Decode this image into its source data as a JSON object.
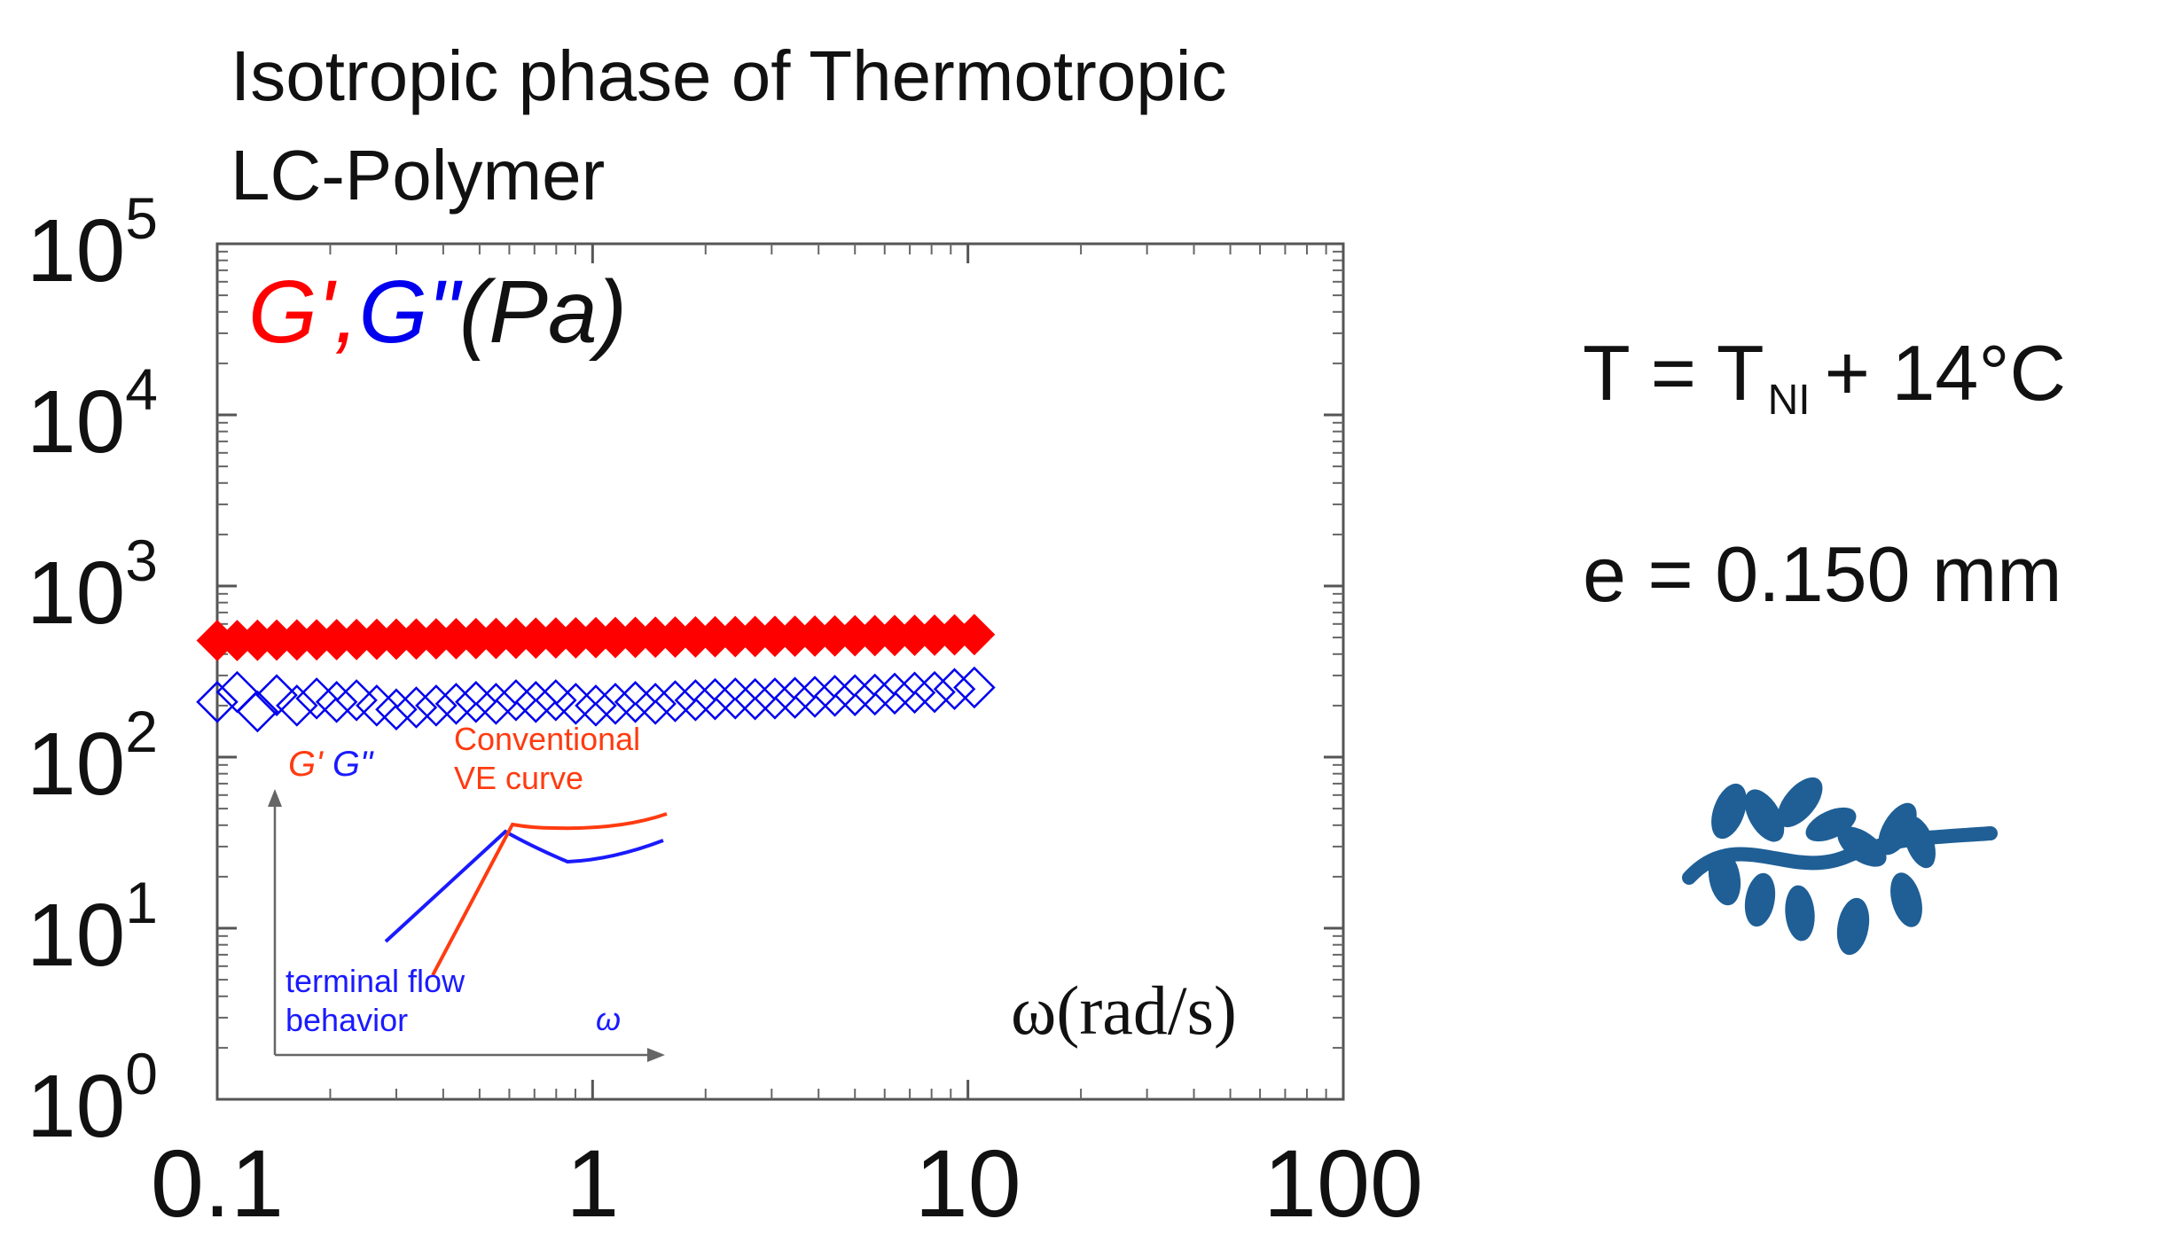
{
  "title": {
    "line1": "Isotropic phase of Thermotropic",
    "line2": "LC-Polymer"
  },
  "conditions": {
    "temperature": {
      "prefix": "T = T",
      "subscript": "NI",
      "suffix": "+ 14°C"
    },
    "gap": "e = 0.150 mm"
  },
  "colors": {
    "g_prime": "#ff0000",
    "g_double_prime": "#0000ee",
    "molecule": "#1f5f96",
    "inset_red": "#ff3b10",
    "inset_blue": "#1a1aff"
  },
  "chart_data": {
    "type": "scatter",
    "title": "Isotropic phase of Thermotropic LC-Polymer",
    "xscale": "log",
    "yscale": "log",
    "xlim": [
      0.1,
      100
    ],
    "ylim": [
      1,
      100000
    ],
    "x_tick_labels": [
      "0.1",
      "1",
      "10",
      "100"
    ],
    "y_tick_labels": [
      {
        "base": "10",
        "exp": "0"
      },
      {
        "base": "10",
        "exp": "1"
      },
      {
        "base": "10",
        "exp": "2"
      },
      {
        "base": "10",
        "exp": "3"
      },
      {
        "base": "10",
        "exp": "4"
      },
      {
        "base": "10",
        "exp": "5"
      }
    ],
    "ylabel_parts": {
      "g_prime": "G'",
      "comma": ",",
      "g_double_prime": "G\"",
      "unit": "(Pa)"
    },
    "xlabel": "ω(rad/s)",
    "series": [
      {
        "name": "G'",
        "marker": "filled-diamond",
        "omega": [
          0.1,
          0.113,
          0.128,
          0.144,
          0.163,
          0.184,
          0.208,
          0.235,
          0.266,
          0.3,
          0.339,
          0.383,
          0.433,
          0.489,
          0.553,
          0.625,
          0.706,
          0.798,
          0.902,
          1.02,
          1.15,
          1.3,
          1.47,
          1.66,
          1.88,
          2.12,
          2.4,
          2.71,
          3.06,
          3.46,
          3.91,
          4.42,
          5.0,
          5.65,
          6.38,
          7.21,
          8.15,
          9.21,
          10.4
        ],
        "values": [
          480,
          480,
          482,
          483,
          484,
          485,
          486,
          487,
          488,
          489,
          490,
          491,
          492,
          493,
          494,
          495,
          496,
          497,
          498,
          499,
          500,
          501,
          502,
          503,
          504,
          505,
          506,
          507,
          508,
          509,
          510,
          511,
          512,
          513,
          514,
          515,
          516,
          518,
          520
        ]
      },
      {
        "name": "G\"",
        "marker": "open-diamond",
        "omega": [
          0.1,
          0.113,
          0.128,
          0.144,
          0.163,
          0.184,
          0.208,
          0.235,
          0.266,
          0.3,
          0.339,
          0.383,
          0.433,
          0.489,
          0.553,
          0.625,
          0.706,
          0.798,
          0.902,
          1.02,
          1.15,
          1.3,
          1.47,
          1.66,
          1.88,
          2.12,
          2.4,
          2.71,
          3.06,
          3.46,
          3.91,
          4.42,
          5.0,
          5.65,
          6.38,
          7.21,
          8.15,
          9.21,
          10.4
        ],
        "values": [
          210,
          240,
          185,
          230,
          200,
          220,
          210,
          215,
          200,
          190,
          195,
          200,
          205,
          210,
          205,
          215,
          210,
          215,
          205,
          200,
          205,
          210,
          205,
          212,
          215,
          218,
          220,
          218,
          220,
          222,
          225,
          228,
          230,
          232,
          235,
          238,
          240,
          250,
          255
        ]
      }
    ]
  },
  "inset": {
    "g_prime_label": "G'",
    "g_double_prime_label": "G\"",
    "conventional_line1": "Conventional",
    "conventional_line2": "VE curve",
    "terminal_line1": "terminal flow",
    "terminal_line2": "behavior",
    "omega_label": "ω"
  }
}
